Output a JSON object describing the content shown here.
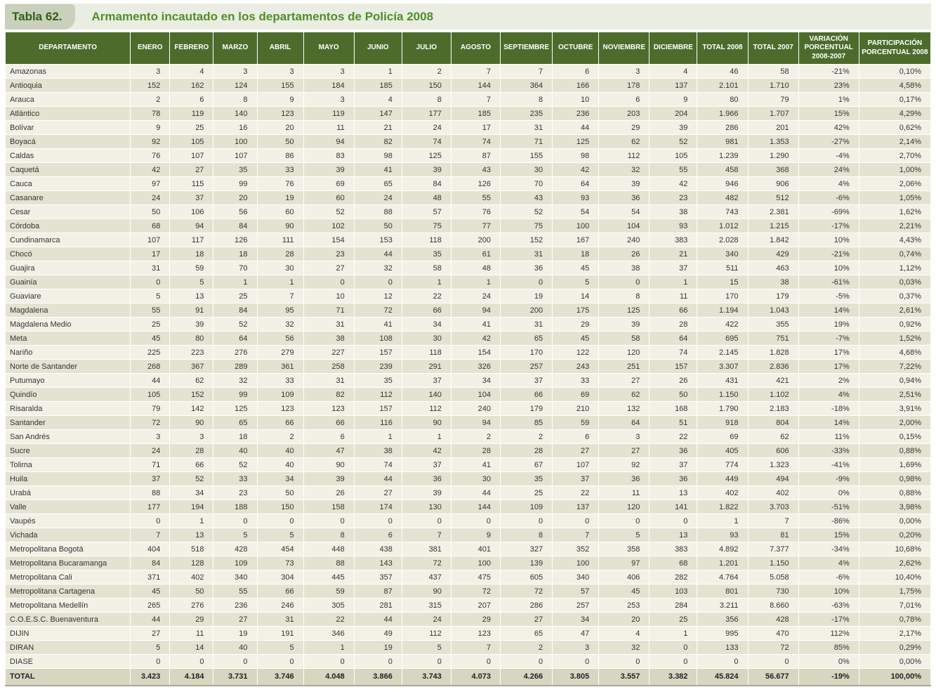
{
  "title": {
    "label": "Tabla 62.",
    "text": "Armamento incautado en los departamentos de Policía 2008"
  },
  "colors": {
    "header_bg": "#4d6c2c",
    "title_green": "#4e8e2c",
    "title_chip_bg": "#c9d0bb",
    "row_light": "#f2f1e6",
    "row_dark": "#e4e3d2",
    "total_row_bg": "#d7d6c1"
  },
  "table": {
    "columns": [
      "DEPARTAMENTO",
      "ENERO",
      "FEBRERO",
      "MARZO",
      "ABRIL",
      "MAYO",
      "JUNIO",
      "JULIO",
      "AGOSTO",
      "SEPTIEMBRE",
      "OCTUBRE",
      "NOVIEMBRE",
      "DICIEMBRE",
      "TOTAL 2008",
      "TOTAL 2007",
      "VARIACIÓN PORCENTUAL 2008-2007",
      "PARTICIPACIÓN PORCENTUAL 2008"
    ],
    "rows": [
      {
        "department": "Amazonas",
        "values": [
          "3",
          "4",
          "3",
          "3",
          "3",
          "1",
          "2",
          "7",
          "7",
          "6",
          "3",
          "4",
          "46",
          "58",
          "-21%",
          "0,10%"
        ]
      },
      {
        "department": "Antioquia",
        "values": [
          "152",
          "162",
          "124",
          "155",
          "184",
          "185",
          "150",
          "144",
          "364",
          "166",
          "178",
          "137",
          "2.101",
          "1.710",
          "23%",
          "4,58%"
        ]
      },
      {
        "department": "Arauca",
        "values": [
          "2",
          "6",
          "8",
          "9",
          "3",
          "4",
          "8",
          "7",
          "8",
          "10",
          "6",
          "9",
          "80",
          "79",
          "1%",
          "0,17%"
        ]
      },
      {
        "department": "Atlántico",
        "values": [
          "78",
          "119",
          "140",
          "123",
          "119",
          "147",
          "177",
          "185",
          "235",
          "236",
          "203",
          "204",
          "1.966",
          "1.707",
          "15%",
          "4,29%"
        ]
      },
      {
        "department": "Bolívar",
        "values": [
          "9",
          "25",
          "16",
          "20",
          "11",
          "21",
          "24",
          "17",
          "31",
          "44",
          "29",
          "39",
          "286",
          "201",
          "42%",
          "0,62%"
        ]
      },
      {
        "department": "Boyacá",
        "values": [
          "92",
          "105",
          "100",
          "50",
          "94",
          "82",
          "74",
          "74",
          "71",
          "125",
          "62",
          "52",
          "981",
          "1.353",
          "-27%",
          "2,14%"
        ]
      },
      {
        "department": "Caldas",
        "values": [
          "76",
          "107",
          "107",
          "86",
          "83",
          "98",
          "125",
          "87",
          "155",
          "98",
          "112",
          "105",
          "1.239",
          "1.290",
          "-4%",
          "2,70%"
        ]
      },
      {
        "department": "Caquetá",
        "values": [
          "42",
          "27",
          "35",
          "33",
          "39",
          "41",
          "39",
          "43",
          "30",
          "42",
          "32",
          "55",
          "458",
          "368",
          "24%",
          "1,00%"
        ]
      },
      {
        "department": "Cauca",
        "values": [
          "97",
          "115",
          "99",
          "76",
          "69",
          "65",
          "84",
          "126",
          "70",
          "64",
          "39",
          "42",
          "946",
          "906",
          "4%",
          "2,06%"
        ]
      },
      {
        "department": "Casanare",
        "values": [
          "24",
          "37",
          "20",
          "19",
          "60",
          "24",
          "48",
          "55",
          "43",
          "93",
          "36",
          "23",
          "482",
          "512",
          "-6%",
          "1,05%"
        ]
      },
      {
        "department": "Cesar",
        "values": [
          "50",
          "106",
          "56",
          "60",
          "52",
          "88",
          "57",
          "76",
          "52",
          "54",
          "54",
          "38",
          "743",
          "2.381",
          "-69%",
          "1,62%"
        ]
      },
      {
        "department": "Córdoba",
        "values": [
          "68",
          "94",
          "84",
          "90",
          "102",
          "50",
          "75",
          "77",
          "75",
          "100",
          "104",
          "93",
          "1.012",
          "1.215",
          "-17%",
          "2,21%"
        ]
      },
      {
        "department": "Cundinamarca",
        "values": [
          "107",
          "117",
          "126",
          "111",
          "154",
          "153",
          "118",
          "200",
          "152",
          "167",
          "240",
          "383",
          "2.028",
          "1.842",
          "10%",
          "4,43%"
        ]
      },
      {
        "department": "Chocó",
        "values": [
          "17",
          "18",
          "18",
          "28",
          "23",
          "44",
          "35",
          "61",
          "31",
          "18",
          "26",
          "21",
          "340",
          "429",
          "-21%",
          "0,74%"
        ]
      },
      {
        "department": "Guajira",
        "values": [
          "31",
          "59",
          "70",
          "30",
          "27",
          "32",
          "58",
          "48",
          "36",
          "45",
          "38",
          "37",
          "511",
          "463",
          "10%",
          "1,12%"
        ]
      },
      {
        "department": "Guainía",
        "values": [
          "0",
          "5",
          "1",
          "1",
          "0",
          "0",
          "1",
          "1",
          "0",
          "5",
          "0",
          "1",
          "15",
          "38",
          "-61%",
          "0,03%"
        ]
      },
      {
        "department": "Guaviare",
        "values": [
          "5",
          "13",
          "25",
          "7",
          "10",
          "12",
          "22",
          "24",
          "19",
          "14",
          "8",
          "11",
          "170",
          "179",
          "-5%",
          "0,37%"
        ]
      },
      {
        "department": "Magdalena",
        "values": [
          "55",
          "91",
          "84",
          "95",
          "71",
          "72",
          "66",
          "94",
          "200",
          "175",
          "125",
          "66",
          "1.194",
          "1.043",
          "14%",
          "2,61%"
        ]
      },
      {
        "department": "Magdalena Medio",
        "values": [
          "25",
          "39",
          "52",
          "32",
          "31",
          "41",
          "34",
          "41",
          "31",
          "29",
          "39",
          "28",
          "422",
          "355",
          "19%",
          "0,92%"
        ]
      },
      {
        "department": "Meta",
        "values": [
          "45",
          "80",
          "64",
          "56",
          "38",
          "108",
          "30",
          "42",
          "65",
          "45",
          "58",
          "64",
          "695",
          "751",
          "-7%",
          "1,52%"
        ]
      },
      {
        "department": "Nariño",
        "values": [
          "225",
          "223",
          "276",
          "279",
          "227",
          "157",
          "118",
          "154",
          "170",
          "122",
          "120",
          "74",
          "2.145",
          "1.828",
          "17%",
          "4,68%"
        ]
      },
      {
        "department": "Norte de Santander",
        "values": [
          "268",
          "367",
          "289",
          "361",
          "258",
          "239",
          "291",
          "326",
          "257",
          "243",
          "251",
          "157",
          "3.307",
          "2.836",
          "17%",
          "7,22%"
        ]
      },
      {
        "department": "Putumayo",
        "values": [
          "44",
          "62",
          "32",
          "33",
          "31",
          "35",
          "37",
          "34",
          "37",
          "33",
          "27",
          "26",
          "431",
          "421",
          "2%",
          "0,94%"
        ]
      },
      {
        "department": "Quindío",
        "values": [
          "105",
          "152",
          "99",
          "109",
          "82",
          "112",
          "140",
          "104",
          "66",
          "69",
          "62",
          "50",
          "1.150",
          "1.102",
          "4%",
          "2,51%"
        ]
      },
      {
        "department": "Risaralda",
        "values": [
          "79",
          "142",
          "125",
          "123",
          "123",
          "157",
          "112",
          "240",
          "179",
          "210",
          "132",
          "168",
          "1.790",
          "2.183",
          "-18%",
          "3,91%"
        ]
      },
      {
        "department": "Santander",
        "values": [
          "72",
          "90",
          "65",
          "66",
          "66",
          "116",
          "90",
          "94",
          "85",
          "59",
          "64",
          "51",
          "918",
          "804",
          "14%",
          "2,00%"
        ]
      },
      {
        "department": "San Andrés",
        "values": [
          "3",
          "3",
          "18",
          "2",
          "6",
          "1",
          "1",
          "2",
          "2",
          "6",
          "3",
          "22",
          "69",
          "62",
          "11%",
          "0,15%"
        ]
      },
      {
        "department": "Sucre",
        "values": [
          "24",
          "28",
          "40",
          "40",
          "47",
          "38",
          "42",
          "28",
          "28",
          "27",
          "27",
          "36",
          "405",
          "606",
          "-33%",
          "0,88%"
        ]
      },
      {
        "department": "Tolima",
        "values": [
          "71",
          "66",
          "52",
          "40",
          "90",
          "74",
          "37",
          "41",
          "67",
          "107",
          "92",
          "37",
          "774",
          "1.323",
          "-41%",
          "1,69%"
        ]
      },
      {
        "department": "Huila",
        "values": [
          "37",
          "52",
          "33",
          "34",
          "39",
          "44",
          "36",
          "30",
          "35",
          "37",
          "36",
          "36",
          "449",
          "494",
          "-9%",
          "0,98%"
        ]
      },
      {
        "department": "Urabá",
        "values": [
          "88",
          "34",
          "23",
          "50",
          "26",
          "27",
          "39",
          "44",
          "25",
          "22",
          "11",
          "13",
          "402",
          "402",
          "0%",
          "0,88%"
        ]
      },
      {
        "department": "Valle",
        "values": [
          "177",
          "194",
          "188",
          "150",
          "158",
          "174",
          "130",
          "144",
          "109",
          "137",
          "120",
          "141",
          "1.822",
          "3.703",
          "-51%",
          "3,98%"
        ]
      },
      {
        "department": "Vaupés",
        "values": [
          "0",
          "1",
          "0",
          "0",
          "0",
          "0",
          "0",
          "0",
          "0",
          "0",
          "0",
          "0",
          "1",
          "7",
          "-86%",
          "0,00%"
        ]
      },
      {
        "department": "Vichada",
        "values": [
          "7",
          "13",
          "5",
          "5",
          "8",
          "6",
          "7",
          "9",
          "8",
          "7",
          "5",
          "13",
          "93",
          "81",
          "15%",
          "0,20%"
        ]
      },
      {
        "department": "Metropolitana Bogotá",
        "values": [
          "404",
          "518",
          "428",
          "454",
          "448",
          "438",
          "381",
          "401",
          "327",
          "352",
          "358",
          "383",
          "4.892",
          "7.377",
          "-34%",
          "10,68%"
        ]
      },
      {
        "department": "Metropolitana Bucaramanga",
        "values": [
          "84",
          "128",
          "109",
          "73",
          "88",
          "143",
          "72",
          "100",
          "139",
          "100",
          "97",
          "68",
          "1.201",
          "1.150",
          "4%",
          "2,62%"
        ]
      },
      {
        "department": "Metropolitana Cali",
        "values": [
          "371",
          "402",
          "340",
          "304",
          "445",
          "357",
          "437",
          "475",
          "605",
          "340",
          "406",
          "282",
          "4.764",
          "5.058",
          "-6%",
          "10,40%"
        ]
      },
      {
        "department": "Metropolitana Cartagena",
        "values": [
          "45",
          "50",
          "55",
          "66",
          "59",
          "87",
          "90",
          "72",
          "72",
          "57",
          "45",
          "103",
          "801",
          "730",
          "10%",
          "1,75%"
        ]
      },
      {
        "department": "Metropolitana Medellín",
        "values": [
          "265",
          "276",
          "236",
          "246",
          "305",
          "281",
          "315",
          "207",
          "286",
          "257",
          "253",
          "284",
          "3.211",
          "8.660",
          "-63%",
          "7,01%"
        ]
      },
      {
        "department": "C.O.E.S.C. Buenaventura",
        "values": [
          "44",
          "29",
          "27",
          "31",
          "22",
          "44",
          "24",
          "29",
          "27",
          "34",
          "20",
          "25",
          "356",
          "428",
          "-17%",
          "0,78%"
        ]
      },
      {
        "department": "DIJIN",
        "values": [
          "27",
          "11",
          "19",
          "191",
          "346",
          "49",
          "112",
          "123",
          "65",
          "47",
          "4",
          "1",
          "995",
          "470",
          "112%",
          "2,17%"
        ]
      },
      {
        "department": "DIRAN",
        "values": [
          "5",
          "14",
          "40",
          "5",
          "1",
          "19",
          "5",
          "7",
          "2",
          "3",
          "32",
          "0",
          "133",
          "72",
          "85%",
          "0,29%"
        ]
      },
      {
        "department": "DIASE",
        "values": [
          "0",
          "0",
          "0",
          "0",
          "0",
          "0",
          "0",
          "0",
          "0",
          "0",
          "0",
          "0",
          "0",
          "0",
          "0%",
          "0,00%"
        ]
      }
    ],
    "total": {
      "label": "TOTAL",
      "values": [
        "3.423",
        "4.184",
        "3.731",
        "3.746",
        "4.048",
        "3.866",
        "3.743",
        "4.073",
        "4.266",
        "3.805",
        "3.557",
        "3.382",
        "45.824",
        "56.677",
        "-19%",
        "100,00%"
      ]
    }
  }
}
